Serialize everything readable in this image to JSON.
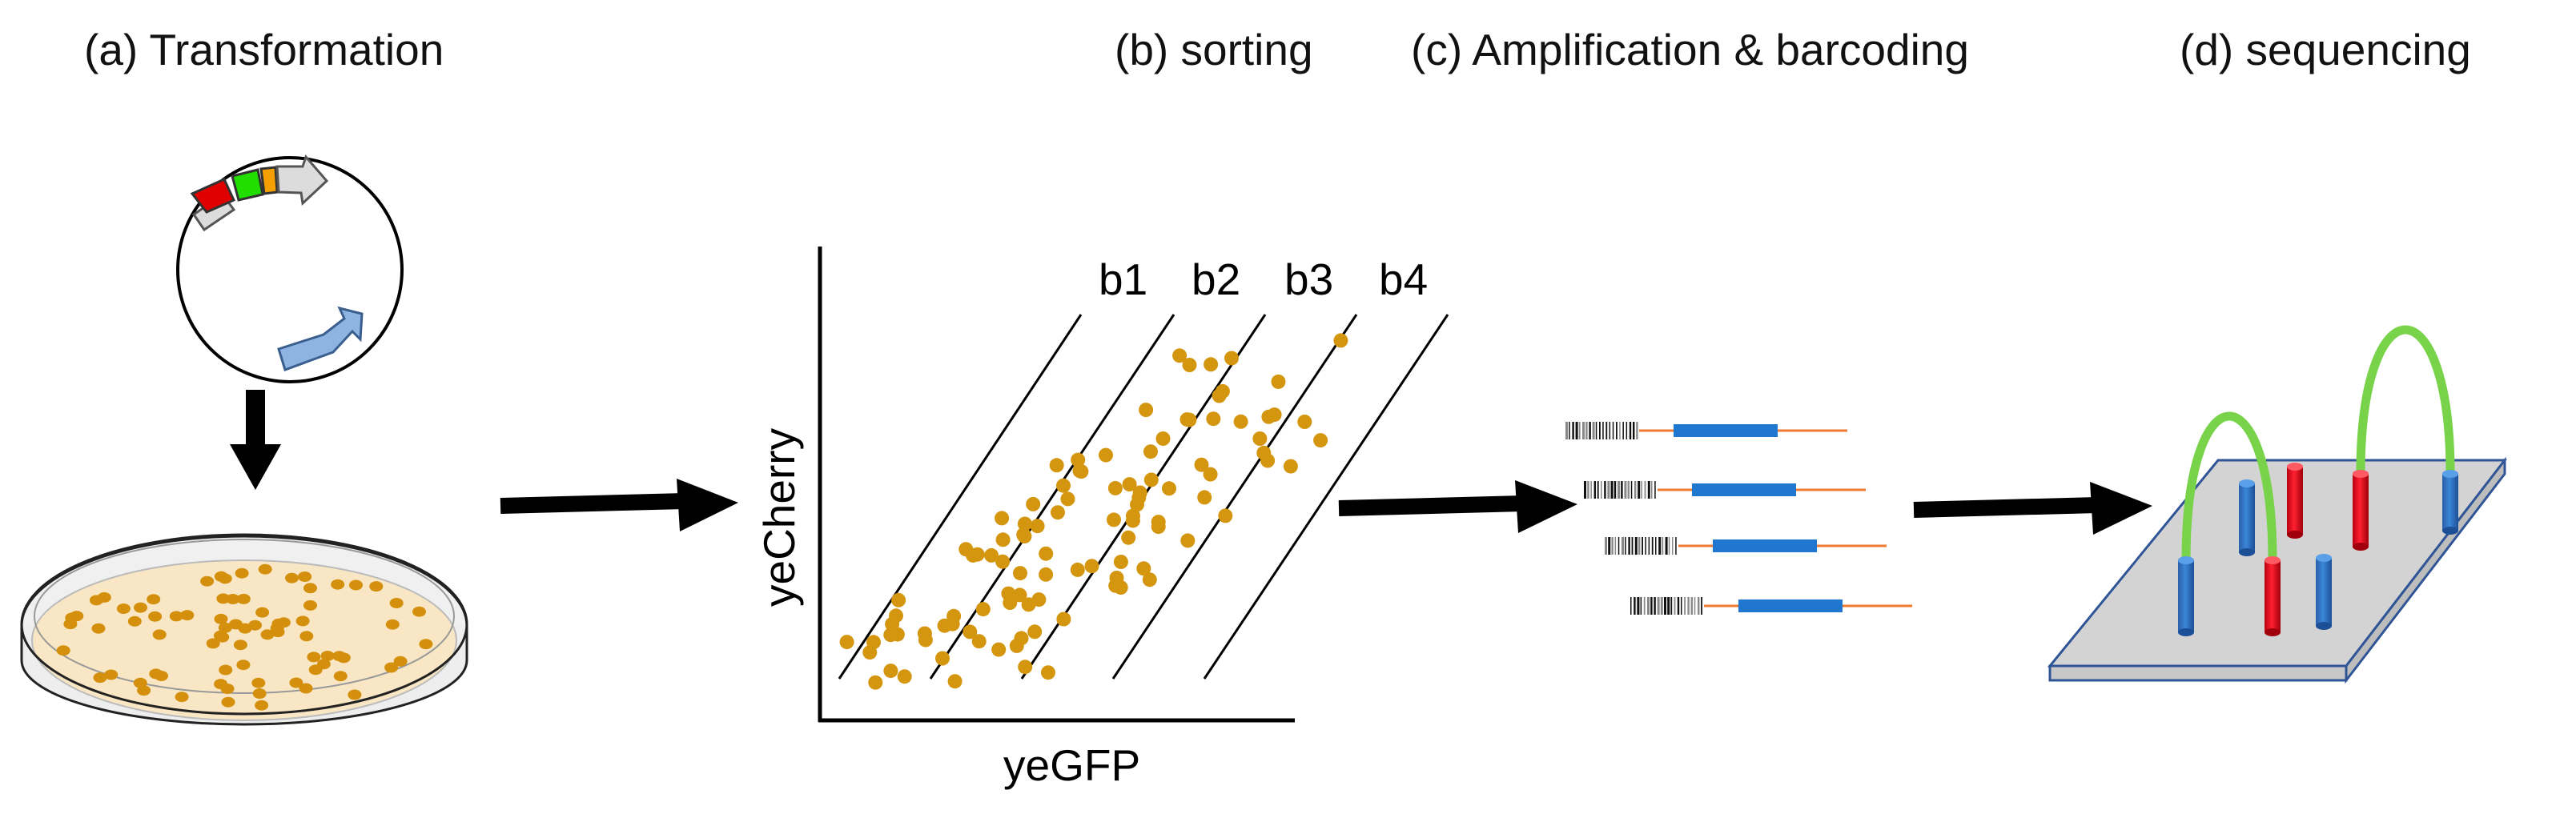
{
  "steps": {
    "a": "(a) Transformation",
    "b": "(b) sorting",
    "c": "(c) Amplification & barcoding",
    "d": "(d) sequencing"
  },
  "sorting_plot": {
    "xlabel": "yeGFP",
    "ylabel": "yeCherry",
    "bins": [
      "b1",
      "b2",
      "b3",
      "b4"
    ]
  },
  "colors": {
    "arrow": "#000000",
    "colony": "#d4900c",
    "cell_dot": "#d4960e",
    "plate_agar": "#f8e6c4",
    "plasmid_red": "#e00000",
    "plasmid_green": "#22dd00",
    "plasmid_orange": "#f5a000",
    "plasmid_grey": "#dcdcdc",
    "plasmid_blue": "#8eb4e3",
    "read_blue": "#1f77d0",
    "read_orange": "#f07a30",
    "flowcell": "#d3d3d3",
    "flowcell_edge": "#2f5597",
    "cluster_blue": "#2e75c6",
    "cluster_red": "#e0101a",
    "bridge_green": "#78d24a"
  },
  "icons": {
    "plasmid": "plasmid-icon",
    "petri_dish": "petri-dish-icon",
    "flow_cell": "flow-cell-icon"
  }
}
